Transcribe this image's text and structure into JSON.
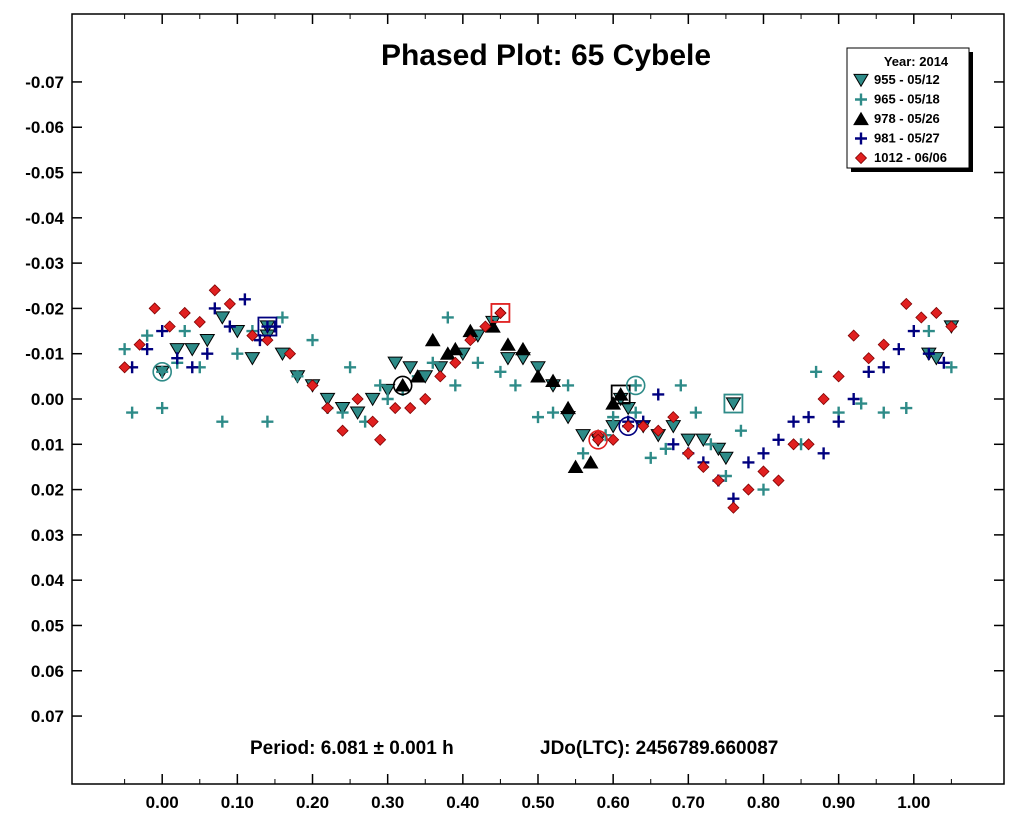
{
  "chart_data": {
    "type": "scatter",
    "title": "Phased Plot: 65 Cybele",
    "footer": {
      "period": "Period: 6.081 ± 0.001 h",
      "epoch": "JDo(LTC): 2456789.660087"
    },
    "xlabel": "",
    "ylabel": "",
    "xlim": [
      -0.12,
      1.12
    ],
    "ylim": [
      -0.085,
      0.085
    ],
    "y_inverted": true,
    "x_ticks": [
      "0.00",
      "0.10",
      "0.20",
      "0.30",
      "0.40",
      "0.50",
      "0.60",
      "0.70",
      "0.80",
      "0.90",
      "1.00"
    ],
    "x_tick_values": [
      0,
      0.1,
      0.2,
      0.3,
      0.4,
      0.5,
      0.6,
      0.7,
      0.8,
      0.9,
      1.0
    ],
    "y_ticks": [
      "-0.07",
      "-0.06",
      "-0.05",
      "-0.04",
      "-0.03",
      "-0.02",
      "-0.01",
      "0.00",
      "0.01",
      "0.02",
      "0.03",
      "0.04",
      "0.05",
      "0.06",
      "0.07"
    ],
    "y_tick_values": [
      -0.07,
      -0.06,
      -0.05,
      -0.04,
      -0.03,
      -0.02,
      -0.01,
      0,
      0.01,
      0.02,
      0.03,
      0.04,
      0.05,
      0.06,
      0.07
    ],
    "grid": false,
    "legend": {
      "title": "Year: 2014",
      "placement": "top-right"
    },
    "series": [
      {
        "name": "955 - 05/12",
        "marker": "triangle-down",
        "color": "#2e8b88",
        "stroke": "#000000",
        "points": [
          [
            0.02,
            -0.011
          ],
          [
            0.04,
            -0.011
          ],
          [
            0.06,
            -0.013
          ],
          [
            0.08,
            -0.018
          ],
          [
            0.1,
            -0.015
          ],
          [
            0.12,
            -0.009
          ],
          [
            0.14,
            -0.014
          ],
          [
            0.16,
            -0.01
          ],
          [
            0.18,
            -0.005
          ],
          [
            0.2,
            -0.003
          ],
          [
            0.22,
            0.0
          ],
          [
            0.24,
            0.002
          ],
          [
            0.26,
            0.003
          ],
          [
            0.28,
            0.0
          ],
          [
            0.3,
            -0.002
          ],
          [
            0.31,
            -0.008
          ],
          [
            0.33,
            -0.007
          ],
          [
            0.35,
            -0.005
          ],
          [
            0.37,
            -0.007
          ],
          [
            0.4,
            -0.01
          ],
          [
            0.42,
            -0.014
          ],
          [
            0.44,
            -0.017
          ],
          [
            0.46,
            -0.009
          ],
          [
            0.48,
            -0.009
          ],
          [
            0.5,
            -0.007
          ],
          [
            0.52,
            -0.003
          ],
          [
            0.54,
            0.004
          ],
          [
            0.56,
            0.008
          ],
          [
            0.58,
            0.009
          ],
          [
            0.6,
            0.006
          ],
          [
            0.62,
            0.002
          ],
          [
            0.64,
            0.006
          ],
          [
            0.66,
            0.008
          ],
          [
            0.68,
            0.006
          ],
          [
            0.7,
            0.009
          ],
          [
            0.72,
            0.009
          ],
          [
            0.74,
            0.011
          ],
          [
            0.75,
            0.013
          ],
          [
            1.02,
            -0.01
          ],
          [
            1.03,
            -0.009
          ],
          [
            1.05,
            -0.016
          ],
          [
            0.0,
            -0.006
          ],
          [
            0.76,
            0.001
          ],
          [
            0.14,
            -0.016
          ],
          [
            0.61,
            0.0
          ]
        ]
      },
      {
        "name": "965 - 05/18",
        "marker": "plus",
        "color": "#2e8b88",
        "points": [
          [
            -0.05,
            -0.011
          ],
          [
            -0.04,
            0.003
          ],
          [
            -0.02,
            -0.014
          ],
          [
            0.0,
            0.002
          ],
          [
            0.02,
            -0.008
          ],
          [
            0.03,
            -0.015
          ],
          [
            0.05,
            -0.007
          ],
          [
            0.08,
            0.005
          ],
          [
            0.1,
            -0.01
          ],
          [
            0.12,
            -0.015
          ],
          [
            0.14,
            0.005
          ],
          [
            0.16,
            -0.018
          ],
          [
            0.18,
            -0.005
          ],
          [
            0.2,
            -0.013
          ],
          [
            0.22,
            0.002
          ],
          [
            0.24,
            0.003
          ],
          [
            0.25,
            -0.007
          ],
          [
            0.27,
            0.005
          ],
          [
            0.29,
            -0.003
          ],
          [
            0.3,
            0.0
          ],
          [
            0.32,
            -0.002
          ],
          [
            0.34,
            -0.005
          ],
          [
            0.36,
            -0.008
          ],
          [
            0.38,
            -0.018
          ],
          [
            0.39,
            -0.003
          ],
          [
            0.42,
            -0.008
          ],
          [
            0.45,
            -0.006
          ],
          [
            0.47,
            -0.003
          ],
          [
            0.5,
            0.004
          ],
          [
            0.52,
            0.003
          ],
          [
            0.54,
            -0.003
          ],
          [
            0.56,
            0.012
          ],
          [
            0.59,
            0.008
          ],
          [
            0.6,
            0.004
          ],
          [
            0.63,
            0.003
          ],
          [
            0.65,
            0.013
          ],
          [
            0.67,
            0.011
          ],
          [
            0.69,
            -0.003
          ],
          [
            0.71,
            0.003
          ],
          [
            0.73,
            0.01
          ],
          [
            0.75,
            0.017
          ],
          [
            0.77,
            0.007
          ],
          [
            0.8,
            0.02
          ],
          [
            0.85,
            0.01
          ],
          [
            0.87,
            -0.006
          ],
          [
            0.9,
            0.003
          ],
          [
            0.93,
            0.001
          ],
          [
            0.96,
            0.003
          ],
          [
            0.99,
            0.002
          ],
          [
            1.02,
            -0.015
          ],
          [
            1.05,
            -0.007
          ],
          [
            0.0,
            -0.006
          ],
          [
            0.63,
            -0.003
          ]
        ]
      },
      {
        "name": "978 - 05/26",
        "marker": "triangle-up",
        "color": "#000000",
        "points": [
          [
            0.32,
            -0.003
          ],
          [
            0.34,
            -0.005
          ],
          [
            0.36,
            -0.013
          ],
          [
            0.38,
            -0.01
          ],
          [
            0.39,
            -0.011
          ],
          [
            0.41,
            -0.015
          ],
          [
            0.44,
            -0.016
          ],
          [
            0.46,
            -0.012
          ],
          [
            0.48,
            -0.011
          ],
          [
            0.5,
            -0.005
          ],
          [
            0.52,
            -0.004
          ],
          [
            0.54,
            0.002
          ],
          [
            0.55,
            0.015
          ],
          [
            0.57,
            0.014
          ],
          [
            0.6,
            0.001
          ],
          [
            0.61,
            -0.001
          ],
          [
            0.32,
            -0.003
          ]
        ]
      },
      {
        "name": "981 - 05/27",
        "marker": "plus",
        "color": "#00007f",
        "points": [
          [
            -0.04,
            -0.007
          ],
          [
            -0.02,
            -0.011
          ],
          [
            0.0,
            -0.015
          ],
          [
            0.02,
            -0.009
          ],
          [
            0.04,
            -0.007
          ],
          [
            0.06,
            -0.01
          ],
          [
            0.07,
            -0.02
          ],
          [
            0.09,
            -0.016
          ],
          [
            0.11,
            -0.022
          ],
          [
            0.13,
            -0.013
          ],
          [
            0.15,
            -0.016
          ],
          [
            0.62,
            0.005
          ],
          [
            0.64,
            0.005
          ],
          [
            0.66,
            -0.001
          ],
          [
            0.68,
            0.01
          ],
          [
            0.7,
            0.012
          ],
          [
            0.72,
            0.014
          ],
          [
            0.74,
            0.018
          ],
          [
            0.76,
            0.022
          ],
          [
            0.78,
            0.014
          ],
          [
            0.8,
            0.012
          ],
          [
            0.82,
            0.009
          ],
          [
            0.84,
            0.005
          ],
          [
            0.86,
            0.004
          ],
          [
            0.88,
            0.012
          ],
          [
            0.9,
            0.005
          ],
          [
            0.92,
            0.0
          ],
          [
            0.94,
            -0.006
          ],
          [
            0.96,
            -0.007
          ],
          [
            0.98,
            -0.011
          ],
          [
            1.0,
            -0.015
          ],
          [
            1.02,
            -0.01
          ],
          [
            1.04,
            -0.008
          ],
          [
            0.62,
            0.006
          ],
          [
            0.14,
            -0.016
          ]
        ]
      },
      {
        "name": "1012 - 06/06",
        "marker": "diamond",
        "color": "#e02020",
        "stroke": "#7f0000",
        "points": [
          [
            -0.05,
            -0.007
          ],
          [
            -0.03,
            -0.012
          ],
          [
            -0.01,
            -0.02
          ],
          [
            0.01,
            -0.016
          ],
          [
            0.03,
            -0.019
          ],
          [
            0.05,
            -0.017
          ],
          [
            0.07,
            -0.024
          ],
          [
            0.09,
            -0.021
          ],
          [
            0.12,
            -0.014
          ],
          [
            0.14,
            -0.013
          ],
          [
            0.17,
            -0.01
          ],
          [
            0.2,
            -0.003
          ],
          [
            0.22,
            0.002
          ],
          [
            0.24,
            0.007
          ],
          [
            0.26,
            0.0
          ],
          [
            0.28,
            0.005
          ],
          [
            0.29,
            0.009
          ],
          [
            0.31,
            0.002
          ],
          [
            0.33,
            0.002
          ],
          [
            0.35,
            0.0
          ],
          [
            0.37,
            -0.005
          ],
          [
            0.39,
            -0.008
          ],
          [
            0.41,
            -0.013
          ],
          [
            0.43,
            -0.016
          ],
          [
            0.45,
            -0.019
          ],
          [
            0.58,
            0.008
          ],
          [
            0.6,
            0.009
          ],
          [
            0.62,
            0.006
          ],
          [
            0.64,
            0.006
          ],
          [
            0.66,
            0.007
          ],
          [
            0.68,
            0.004
          ],
          [
            0.7,
            0.012
          ],
          [
            0.72,
            0.015
          ],
          [
            0.74,
            0.018
          ],
          [
            0.76,
            0.024
          ],
          [
            0.78,
            0.02
          ],
          [
            0.8,
            0.016
          ],
          [
            0.82,
            0.018
          ],
          [
            0.84,
            0.01
          ],
          [
            0.86,
            0.01
          ],
          [
            0.88,
            0.0
          ],
          [
            0.9,
            -0.005
          ],
          [
            0.92,
            -0.014
          ],
          [
            0.94,
            -0.009
          ],
          [
            0.96,
            -0.012
          ],
          [
            0.99,
            -0.021
          ],
          [
            1.01,
            -0.018
          ],
          [
            1.03,
            -0.019
          ],
          [
            1.05,
            -0.016
          ],
          [
            0.58,
            0.009
          ],
          [
            0.45,
            -0.019
          ]
        ]
      }
    ],
    "highlighted": [
      {
        "series": 0,
        "x": 0.0,
        "y": -0.006,
        "shape": "circle",
        "color": "#2e8b88"
      },
      {
        "series": 0,
        "x": 0.14,
        "y": -0.016,
        "shape": "square",
        "color": "#00007f"
      },
      {
        "series": 2,
        "x": 0.32,
        "y": -0.003,
        "shape": "circle",
        "color": "#000000"
      },
      {
        "series": 4,
        "x": 0.45,
        "y": -0.019,
        "shape": "square",
        "color": "#e02020"
      },
      {
        "series": 4,
        "x": 0.58,
        "y": 0.009,
        "shape": "circle",
        "color": "#e02020"
      },
      {
        "series": 2,
        "x": 0.61,
        "y": -0.001,
        "shape": "square",
        "color": "#000000"
      },
      {
        "series": 3,
        "x": 0.62,
        "y": 0.006,
        "shape": "circle",
        "color": "#00007f"
      },
      {
        "series": 1,
        "x": 0.63,
        "y": -0.003,
        "shape": "circle",
        "color": "#2e8b88"
      },
      {
        "series": 0,
        "x": 0.76,
        "y": 0.001,
        "shape": "square",
        "color": "#2e8b88"
      }
    ]
  }
}
